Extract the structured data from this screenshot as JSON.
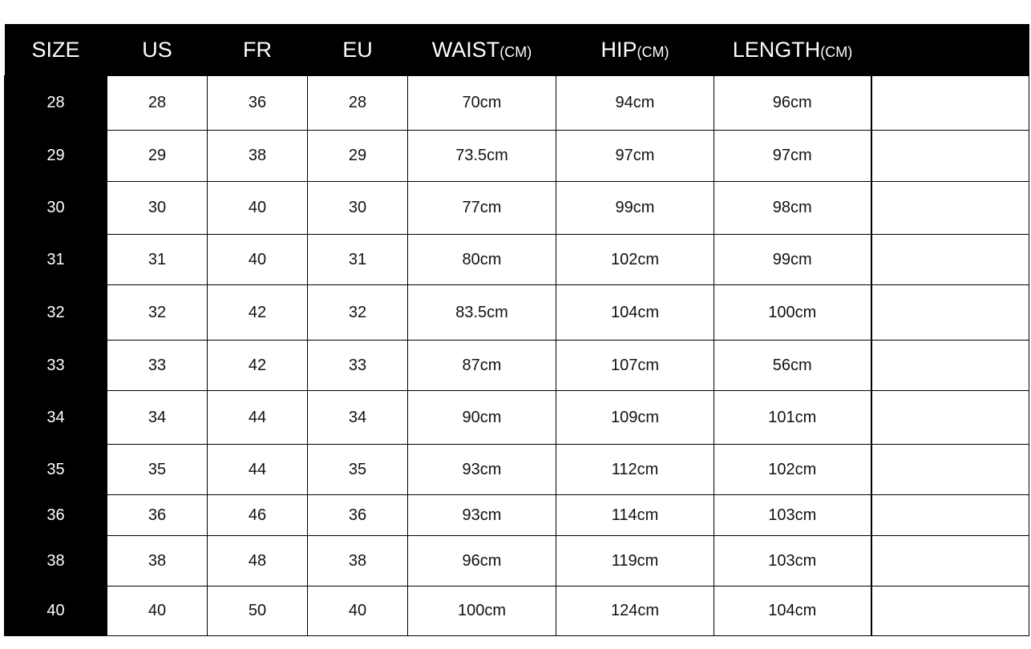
{
  "table": {
    "headers": [
      {
        "main": "SIZE",
        "unit": ""
      },
      {
        "main": "US",
        "unit": ""
      },
      {
        "main": "FR",
        "unit": ""
      },
      {
        "main": "EU",
        "unit": ""
      },
      {
        "main": "WAIST",
        "unit": "(CM)"
      },
      {
        "main": "HIP",
        "unit": "(CM)"
      },
      {
        "main": "LENGTH",
        "unit": "(CM)"
      },
      {
        "main": "",
        "unit": ""
      }
    ],
    "rows": [
      [
        "28",
        "28",
        "36",
        "28",
        "70cm",
        "94cm",
        "96cm",
        ""
      ],
      [
        "29",
        "29",
        "38",
        "29",
        "73.5cm",
        "97cm",
        "97cm",
        ""
      ],
      [
        "30",
        "30",
        "40",
        "30",
        "77cm",
        "99cm",
        "98cm",
        ""
      ],
      [
        "31",
        "31",
        "40",
        "31",
        "80cm",
        "102cm",
        "99cm",
        ""
      ],
      [
        "32",
        "32",
        "42",
        "32",
        "83.5cm",
        "104cm",
        "100cm",
        ""
      ],
      [
        "33",
        "33",
        "42",
        "33",
        "87cm",
        "107cm",
        "56cm",
        ""
      ],
      [
        "34",
        "34",
        "44",
        "34",
        "90cm",
        "109cm",
        "101cm",
        ""
      ],
      [
        "35",
        "35",
        "44",
        "35",
        "93cm",
        "112cm",
        "102cm",
        ""
      ],
      [
        "36",
        "36",
        "46",
        "36",
        "93cm",
        "114cm",
        "103cm",
        ""
      ],
      [
        "38",
        "38",
        "48",
        "38",
        "96cm",
        "119cm",
        "103cm",
        ""
      ],
      [
        "40",
        "40",
        "50",
        "40",
        "100cm",
        "124cm",
        "104cm",
        ""
      ]
    ]
  },
  "colors": {
    "header_bg": "#000000",
    "header_text": "#ffffff",
    "cell_bg": "#ffffff",
    "grid": "#000000"
  }
}
